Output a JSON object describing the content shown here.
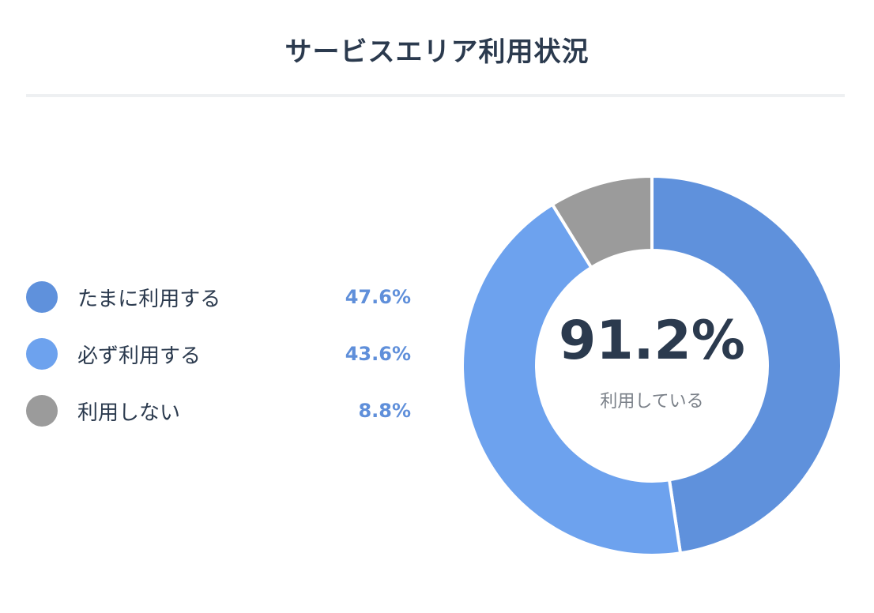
{
  "chart_data": {
    "type": "pie",
    "title": "サービスエリア利用状況",
    "categories": [
      "たまに利用する",
      "必ず利用する",
      "利用しない"
    ],
    "values": [
      47.6,
      43.6,
      8.8
    ],
    "value_labels": [
      "47.6%",
      "43.6%",
      "8.8%"
    ],
    "colors": [
      "#5f91dc",
      "#6da2ee",
      "#9b9b9b"
    ],
    "center_value": "91.2%",
    "center_label": "利用している",
    "legend_position": "left"
  }
}
